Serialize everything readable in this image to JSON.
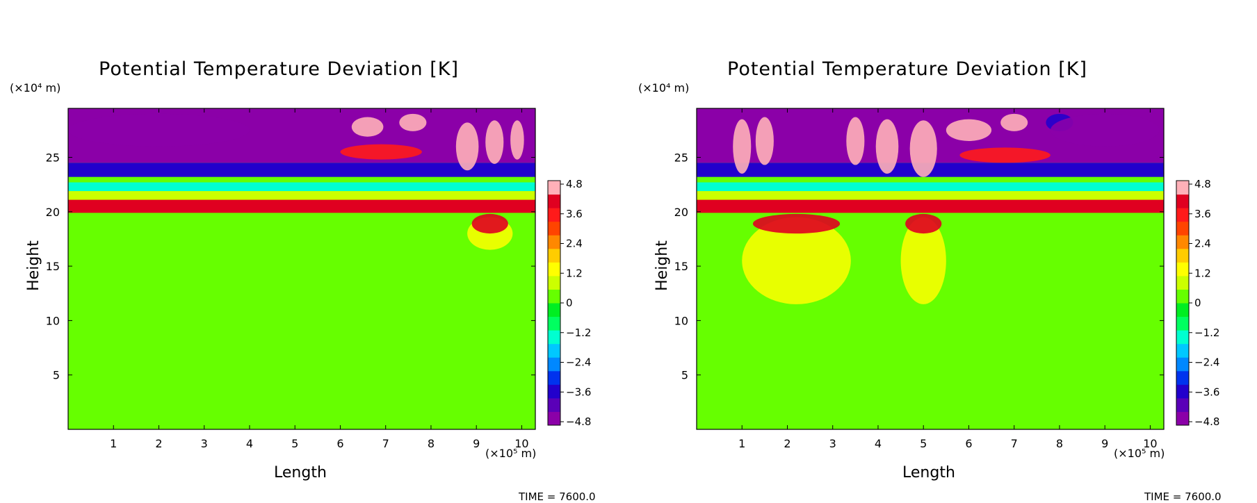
{
  "colors": {
    "background_field": "#00ee22",
    "scale": [
      "#8b00a8",
      "#5a00b8",
      "#2200cc",
      "#0033ee",
      "#0088ff",
      "#00c8ff",
      "#00ffd0",
      "#00ff60",
      "#00ee22",
      "#66ff00",
      "#ccff00",
      "#ffff00",
      "#ffcc00",
      "#ff8800",
      "#ff4400",
      "#ff1a1a",
      "#e00020",
      "#ffb0b8"
    ]
  },
  "chart_data": [
    {
      "type": "heatmap",
      "title": "Potential Temperature Deviation [K]",
      "xlabel": "Length",
      "ylabel": "Height",
      "x_unit": "(×10⁵ m)",
      "y_unit": "(×10⁴ m)",
      "x_ticks": [
        "1",
        "2",
        "3",
        "4",
        "5",
        "6",
        "7",
        "8",
        "9",
        "10"
      ],
      "y_ticks": [
        "5",
        "10",
        "15",
        "20",
        "25"
      ],
      "xlim": [
        0,
        10.3
      ],
      "ylim": [
        0,
        29.5
      ],
      "colorbar_ticks": [
        "4.8",
        "3.6",
        "2.4",
        "1.2",
        "0",
        "−1.2",
        "−2.4",
        "−3.6",
        "−4.8"
      ],
      "colorbar_range": [
        -4.8,
        4.8
      ],
      "time_label": "TIME = 7600.0",
      "features": {
        "background_value": 0,
        "warm_layer_at_height": 20.5,
        "cold_layer_at_height": 24,
        "convective_plume_x": [
          9.3
        ],
        "plume_top": 19.5,
        "plume_bottom": 16.5
      }
    },
    {
      "type": "heatmap",
      "title": "Potential Temperature Deviation [K]",
      "xlabel": "Length",
      "ylabel": "Height",
      "x_unit": "(×10⁵ m)",
      "y_unit": "(×10⁴ m)",
      "x_ticks": [
        "1",
        "2",
        "3",
        "4",
        "5",
        "6",
        "7",
        "8",
        "9",
        "10"
      ],
      "y_ticks": [
        "5",
        "10",
        "15",
        "20",
        "25"
      ],
      "xlim": [
        0,
        10.3
      ],
      "ylim": [
        0,
        29.5
      ],
      "colorbar_ticks": [
        "4.8",
        "3.6",
        "2.4",
        "1.2",
        "0",
        "−1.2",
        "−2.4",
        "−3.6",
        "−4.8"
      ],
      "colorbar_range": [
        -4.8,
        4.8
      ],
      "time_label": "TIME = 7600.0",
      "features": {
        "background_value": 0,
        "warm_layer_at_height": 20.5,
        "cold_layer_at_height": 24,
        "convective_plume_x": [
          2.2,
          5.0
        ],
        "plume_top": 19.5,
        "plume_bottom": 11.5
      }
    }
  ]
}
